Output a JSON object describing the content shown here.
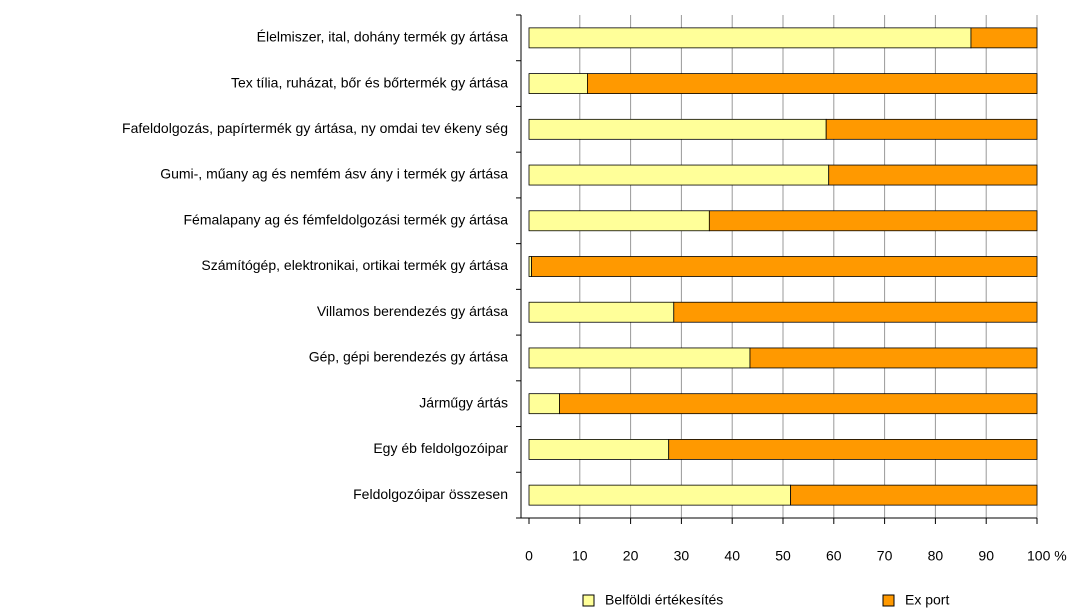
{
  "chart_data": {
    "type": "stacked_barh",
    "categories": [
      "Élelmiszer, ital, dohány termék gy ártása",
      "Tex tília, ruházat, bőr és bőrtermék gy ártása",
      "Fafeldolgozás, papírtermék gy ártása, ny omdai tev ékeny ség",
      "Gumi-, műany ag és nemfém ásv ány i termék gy ártása",
      "Fémalapany ag és fémfeldolgozási termék gy ártása",
      "Számítógép, elektronikai, ortikai termék gy ártása",
      "Villamos berendezés gy ártása",
      "Gép, gépi berendezés gy ártása",
      "Járműgy ártás",
      "Egy éb feldolgozóipar",
      "Feldolgozóipar összesen"
    ],
    "series": [
      {
        "name": "Belföldi értékesítés",
        "color": "#ffff99",
        "values": [
          87,
          11.5,
          58.5,
          59,
          35.5,
          0.5,
          28.5,
          43.5,
          6,
          27.5,
          51.5
        ]
      },
      {
        "name": "Ex port",
        "color": "#ff9900",
        "values": [
          13,
          88.5,
          41.5,
          41,
          64.5,
          99.5,
          71.5,
          56.5,
          94,
          72.5,
          48.5
        ]
      }
    ],
    "xlim": [
      0,
      100
    ],
    "xticks": [
      0,
      10,
      20,
      30,
      40,
      50,
      60,
      70,
      80,
      90,
      {
        "value": 100,
        "label": "100 %"
      }
    ],
    "grid": true
  }
}
